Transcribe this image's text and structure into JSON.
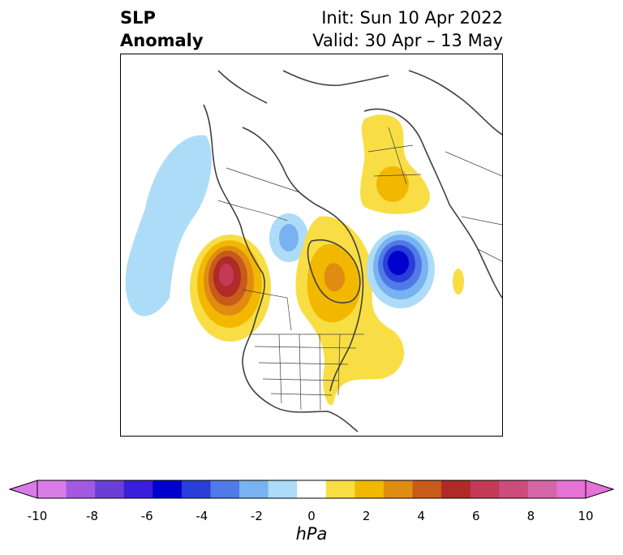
{
  "header": {
    "title_line1": "SLP",
    "title_line2": "Anomaly",
    "init": "Init: Sun 10 Apr 2022",
    "valid": "Valid: 30 Apr – 13 May"
  },
  "colorbar": {
    "units": "hPa",
    "ticks": [
      "-10",
      "-8",
      "-6",
      "-4",
      "-2",
      "0",
      "2",
      "4",
      "6",
      "8",
      "10"
    ],
    "colors": [
      "#d97ce8",
      "#a35ae0",
      "#6b3fd6",
      "#3a1fd8",
      "#0000cc",
      "#2a3ed8",
      "#4f7ae8",
      "#78b2f0",
      "#acdcf8",
      "#ffffff",
      "#f8de44",
      "#f2b800",
      "#e08c12",
      "#c85a1a",
      "#b02a28",
      "#c23a56",
      "#cc4c7a",
      "#d466a8",
      "#e672d6"
    ],
    "over_color": "#e672d6",
    "under_color": "#d97ce8"
  }
}
